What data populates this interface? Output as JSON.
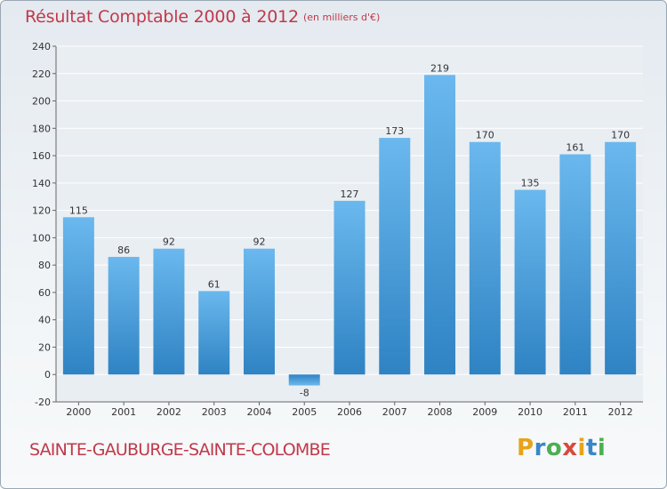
{
  "header": {
    "title": "Résultat Comptable 2000 à 2012",
    "subtitle": "(en milliers d'€)"
  },
  "footer": {
    "commune": "SAINTE-GAUBURGE-SAINTE-COLOMBE",
    "logo_letters": [
      "P",
      "r",
      "o",
      "x",
      "i",
      "t",
      "i"
    ],
    "logo_colors": [
      "#e8a317",
      "#3a86c8",
      "#4caf50",
      "#d84a3a",
      "#e8a317",
      "#3a86c8",
      "#4caf50"
    ]
  },
  "colors": {
    "bar_light": "#6ab8ee",
    "bar_dark": "#2f83c3",
    "grid": "#ffffff",
    "axis": "#666666",
    "accent": "#c0394a"
  },
  "chart_data": {
    "type": "bar",
    "title": "Résultat Comptable 2000 à 2012",
    "subtitle": "(en milliers d'€)",
    "xlabel": "",
    "ylabel": "",
    "categories": [
      "2000",
      "2001",
      "2002",
      "2003",
      "2004",
      "2005",
      "2006",
      "2007",
      "2008",
      "2009",
      "2010",
      "2011",
      "2012"
    ],
    "values": [
      115,
      86,
      92,
      61,
      92,
      -8,
      127,
      173,
      219,
      170,
      135,
      161,
      170
    ],
    "ylim": [
      -20,
      240
    ],
    "yticks": [
      -20,
      0,
      20,
      40,
      60,
      80,
      100,
      120,
      140,
      160,
      180,
      200,
      220,
      240
    ],
    "grid": true,
    "legend": "none"
  }
}
